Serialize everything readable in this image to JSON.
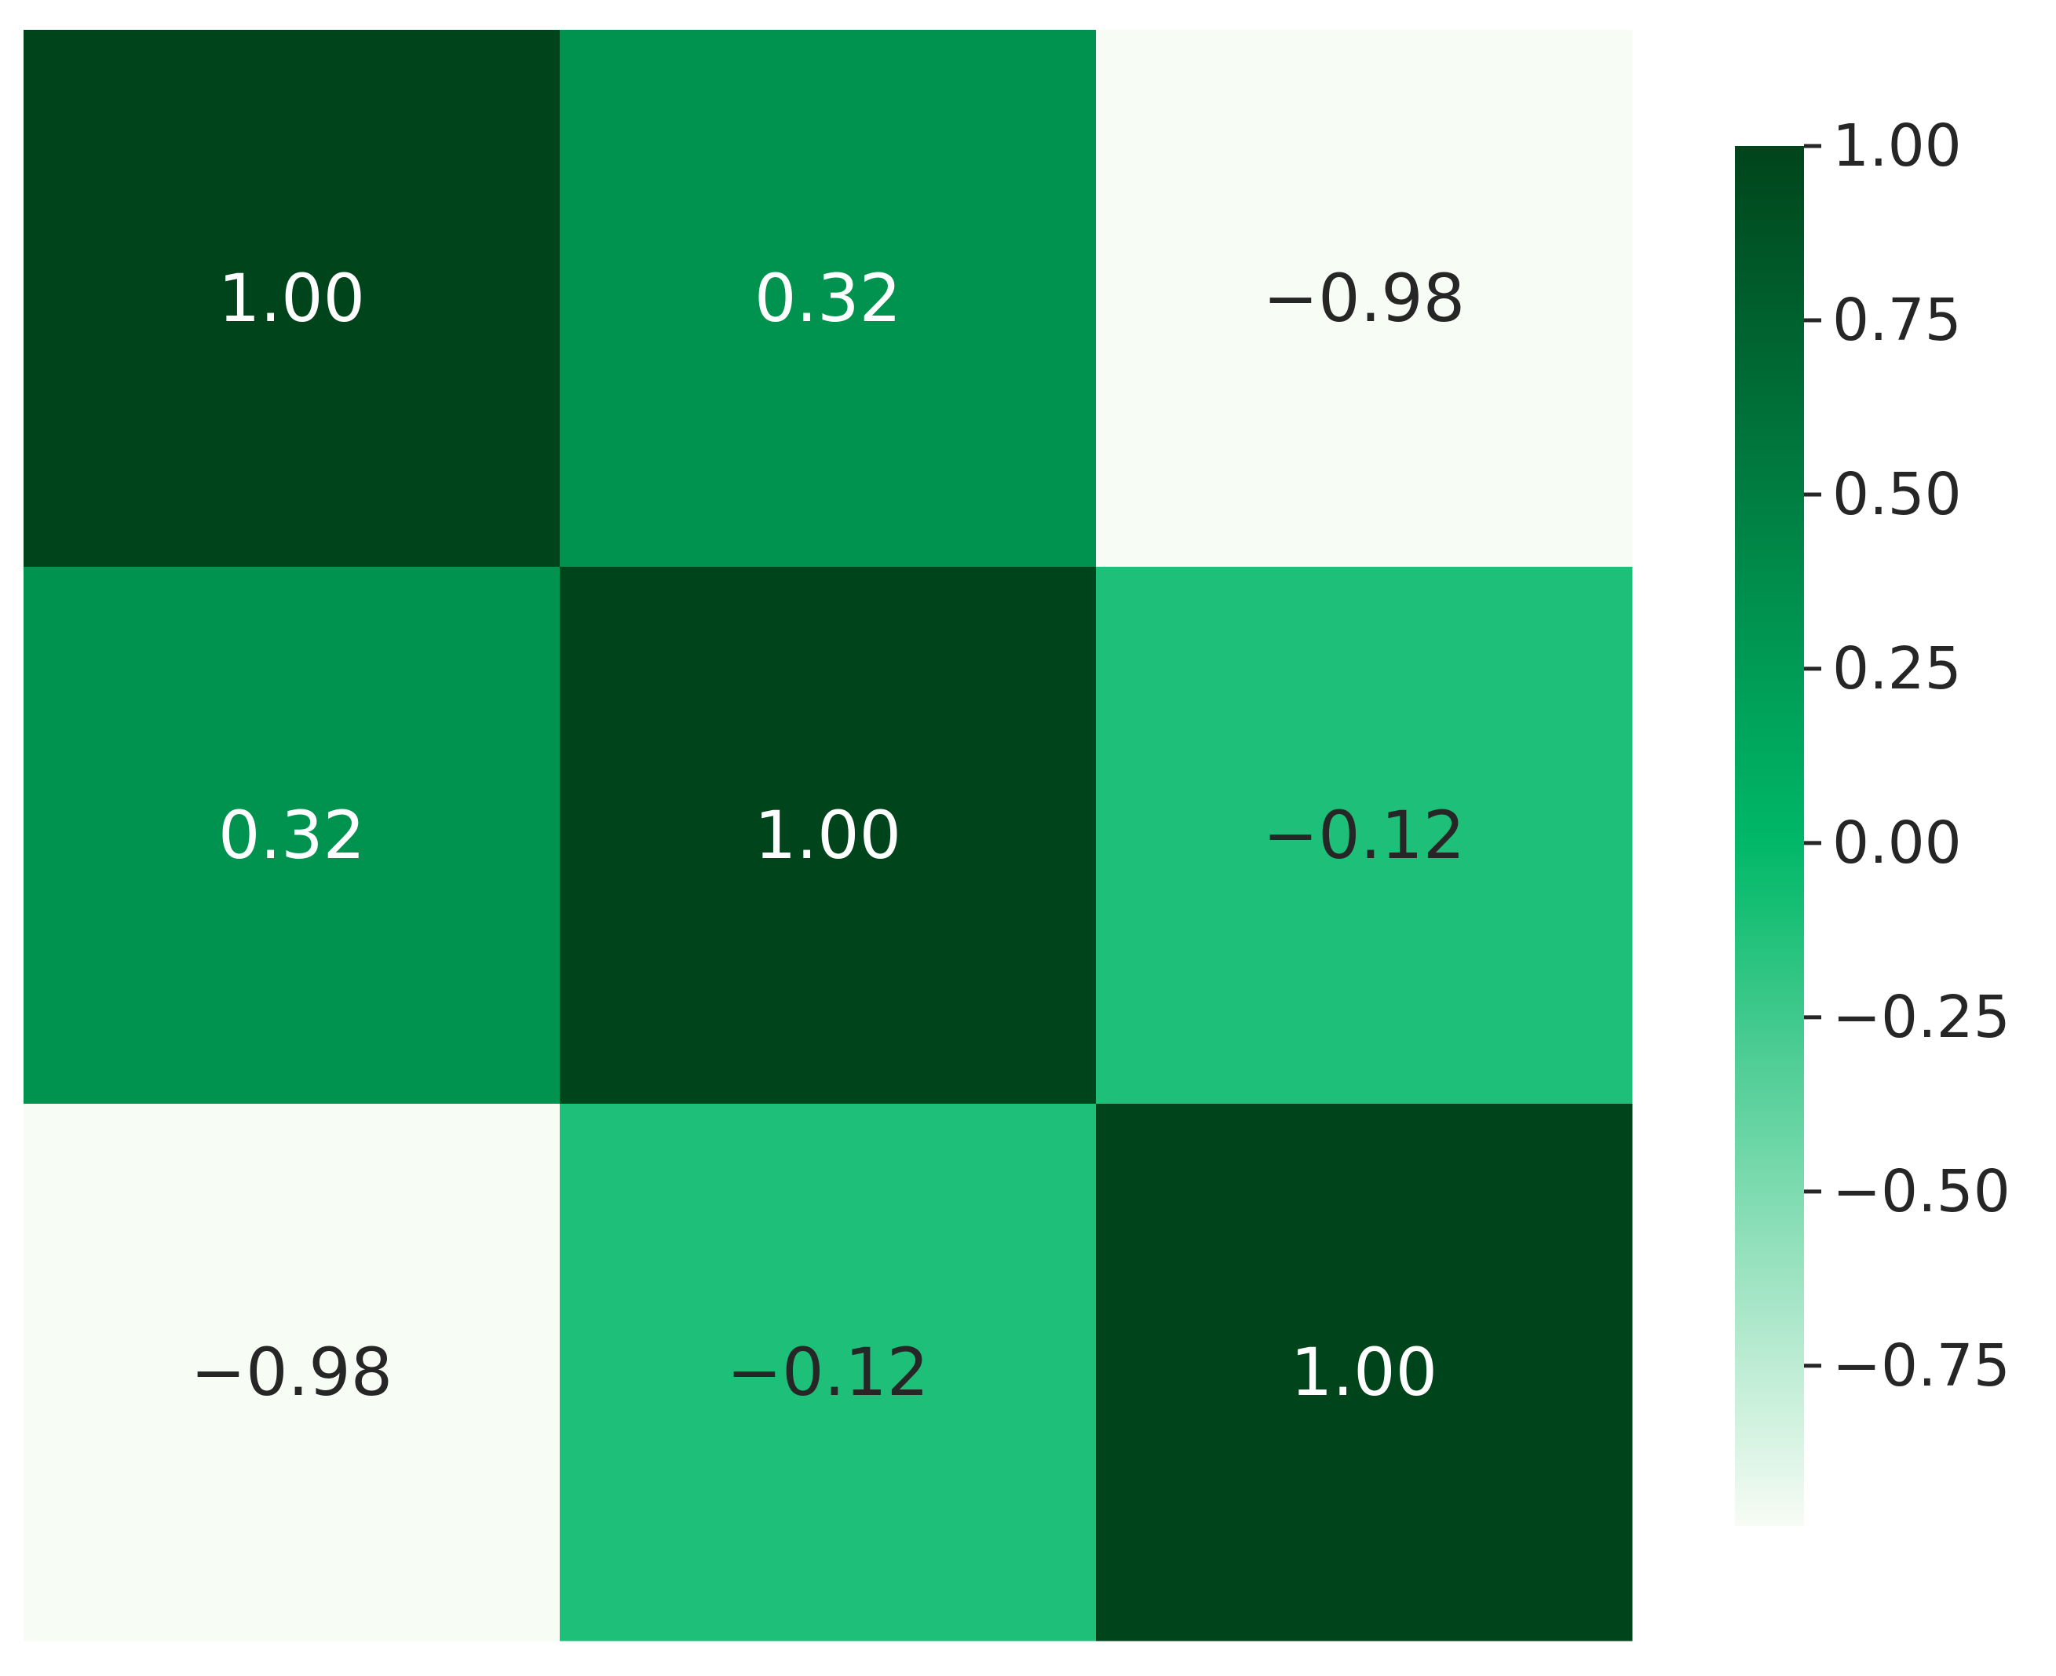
{
  "chart_data": {
    "type": "heatmap",
    "title": "",
    "xlabel": "",
    "ylabel": "",
    "matrix": [
      [
        1.0,
        0.32,
        -0.98
      ],
      [
        0.32,
        1.0,
        -0.12
      ],
      [
        -0.98,
        -0.12,
        1.0
      ]
    ],
    "cell_labels": [
      [
        "1.00",
        "0.32",
        "−0.98"
      ],
      [
        "0.32",
        "1.00",
        "−0.12"
      ],
      [
        "−0.98",
        "−0.12",
        "1.00"
      ]
    ],
    "colormap": {
      "name": "Greens",
      "vmin": -0.98,
      "vmax": 1.0,
      "center": 0,
      "low_color": "#f7fcf5",
      "mid_color": "#00b868",
      "high_color": "#00441b"
    },
    "colorbar": {
      "ticks": [
        1.0,
        0.75,
        0.5,
        0.25,
        0.0,
        -0.25,
        -0.5,
        -0.75
      ],
      "tick_labels": [
        "1.00",
        "0.75",
        "0.50",
        "0.25",
        "0.00",
        "−0.25",
        "−0.50",
        "−0.75"
      ]
    },
    "label_colors": {
      "on_dark": "#ffffff",
      "on_light": "#262626"
    }
  }
}
